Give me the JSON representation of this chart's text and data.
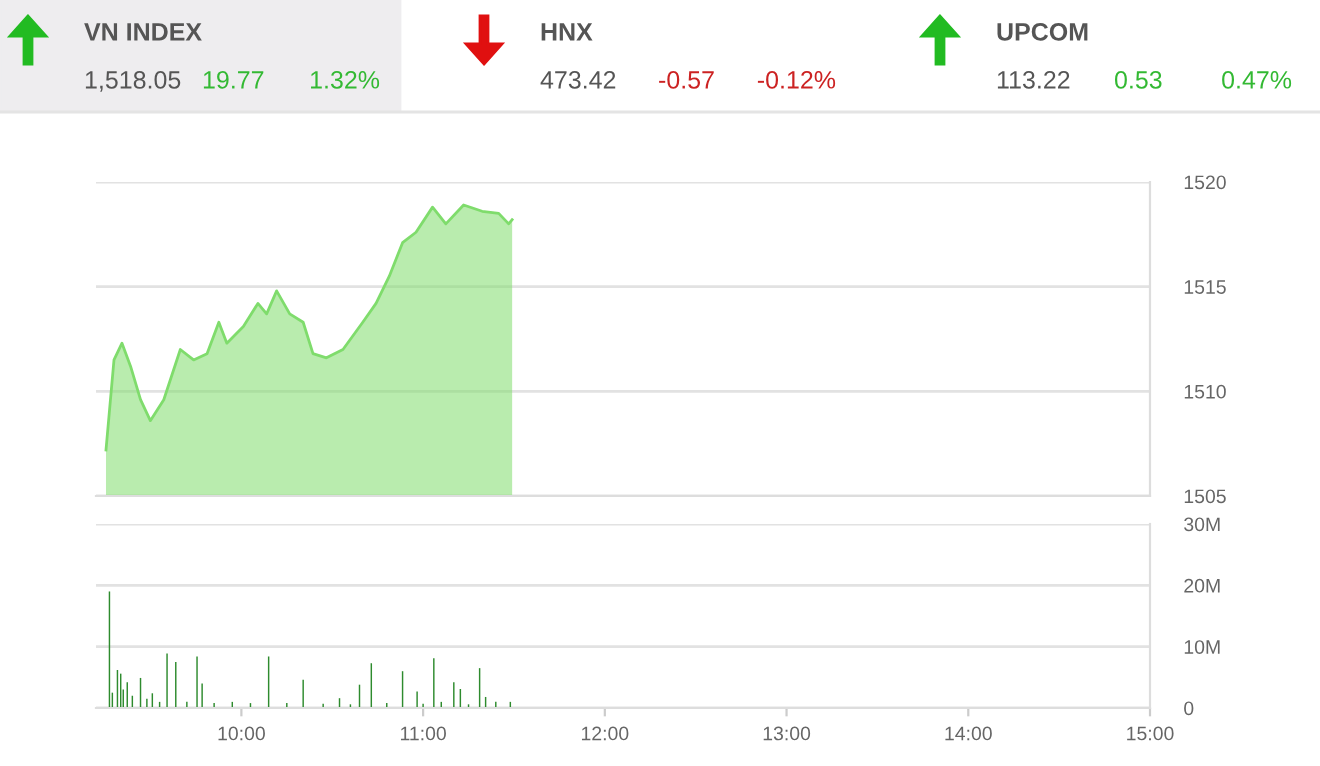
{
  "chart_data": [
    {
      "type": "other",
      "annotations": [
        "VN INDEX",
        "1,518.05",
        "19.77",
        "1.32%",
        "HNX",
        "473.42",
        "-0.57",
        "-0.12%",
        "UPCOM",
        "113.22",
        "0.53",
        "0.47%"
      ]
    },
    {
      "type": "area",
      "x": [
        9.255,
        9.299,
        9.343,
        9.39,
        9.445,
        9.499,
        9.573,
        9.664,
        9.737,
        9.811,
        9.876,
        9.92,
        10.011,
        10.091,
        10.139,
        10.194,
        10.266,
        10.34,
        10.394,
        10.468,
        10.559,
        10.668,
        10.741,
        10.814,
        10.887,
        10.961,
        11.052,
        11.125,
        11.223,
        11.325,
        11.416,
        11.471,
        11.49
      ],
      "series": [
        {
          "color": "#7fdc6c",
          "values": [
            1507.2,
            1511.5,
            1512.3,
            1511.2,
            1509.6,
            1508.6,
            1509.6,
            1512.0,
            1511.5,
            1511.8,
            1513.3,
            1512.3,
            1513.1,
            1514.2,
            1513.7,
            1514.8,
            1513.7,
            1513.3,
            1511.8,
            1511.6,
            1512.0,
            1513.3,
            1514.2,
            1515.5,
            1517.1,
            1517.6,
            1518.8,
            1518.0,
            1518.9,
            1518.6,
            1518.5,
            1518.0,
            1518.2
          ]
        }
      ],
      "xlim": [
        9.2,
        15
      ],
      "ylim": [
        1505,
        1520
      ],
      "yticks": [
        1505,
        1510,
        1515,
        1520
      ],
      "grid": "y",
      "tick_labels": "y"
    },
    {
      "type": "bar",
      "x": [
        9.274,
        9.29,
        9.318,
        9.336,
        9.35,
        9.372,
        9.4,
        9.445,
        9.48,
        9.51,
        9.55,
        9.591,
        9.639,
        9.7,
        9.756,
        9.784,
        9.85,
        9.95,
        10.05,
        10.15,
        10.25,
        10.34,
        10.45,
        10.54,
        10.6,
        10.65,
        10.715,
        10.8,
        10.887,
        10.967,
        11.0,
        11.059,
        11.1,
        11.169,
        11.205,
        11.25,
        11.311,
        11.344,
        11.4,
        11.48
      ],
      "series": [
        {
          "color": "#2e8b2e",
          "values": [
            19.0,
            2.5,
            6.2,
            5.6,
            3.0,
            4.2,
            2.0,
            4.9,
            1.5,
            2.4,
            1.0,
            8.9,
            7.5,
            1.0,
            8.4,
            4.0,
            0.8,
            1.0,
            0.8,
            8.4,
            0.8,
            4.6,
            0.7,
            1.6,
            0.6,
            3.8,
            7.3,
            0.8,
            6.0,
            2.7,
            0.7,
            8.1,
            1.0,
            4.2,
            3.1,
            0.6,
            6.5,
            1.8,
            1.0,
            1.0
          ]
        }
      ],
      "xlim": [
        9.2,
        15
      ],
      "xticks": [
        {
          "value": 10,
          "label": "10:00"
        },
        {
          "value": 11,
          "label": "11:00"
        },
        {
          "value": 12,
          "label": "12:00"
        },
        {
          "value": 13,
          "label": "13:00"
        },
        {
          "value": 14,
          "label": "14:00"
        },
        {
          "value": 15,
          "label": "15:00"
        }
      ],
      "ylim": [
        0,
        30
      ],
      "yticks": [
        0,
        {
          "value": 10,
          "label": "10M"
        },
        {
          "value": 20,
          "label": "20M"
        },
        {
          "value": 30,
          "label": "30M"
        }
      ],
      "grid": "y"
    }
  ]
}
